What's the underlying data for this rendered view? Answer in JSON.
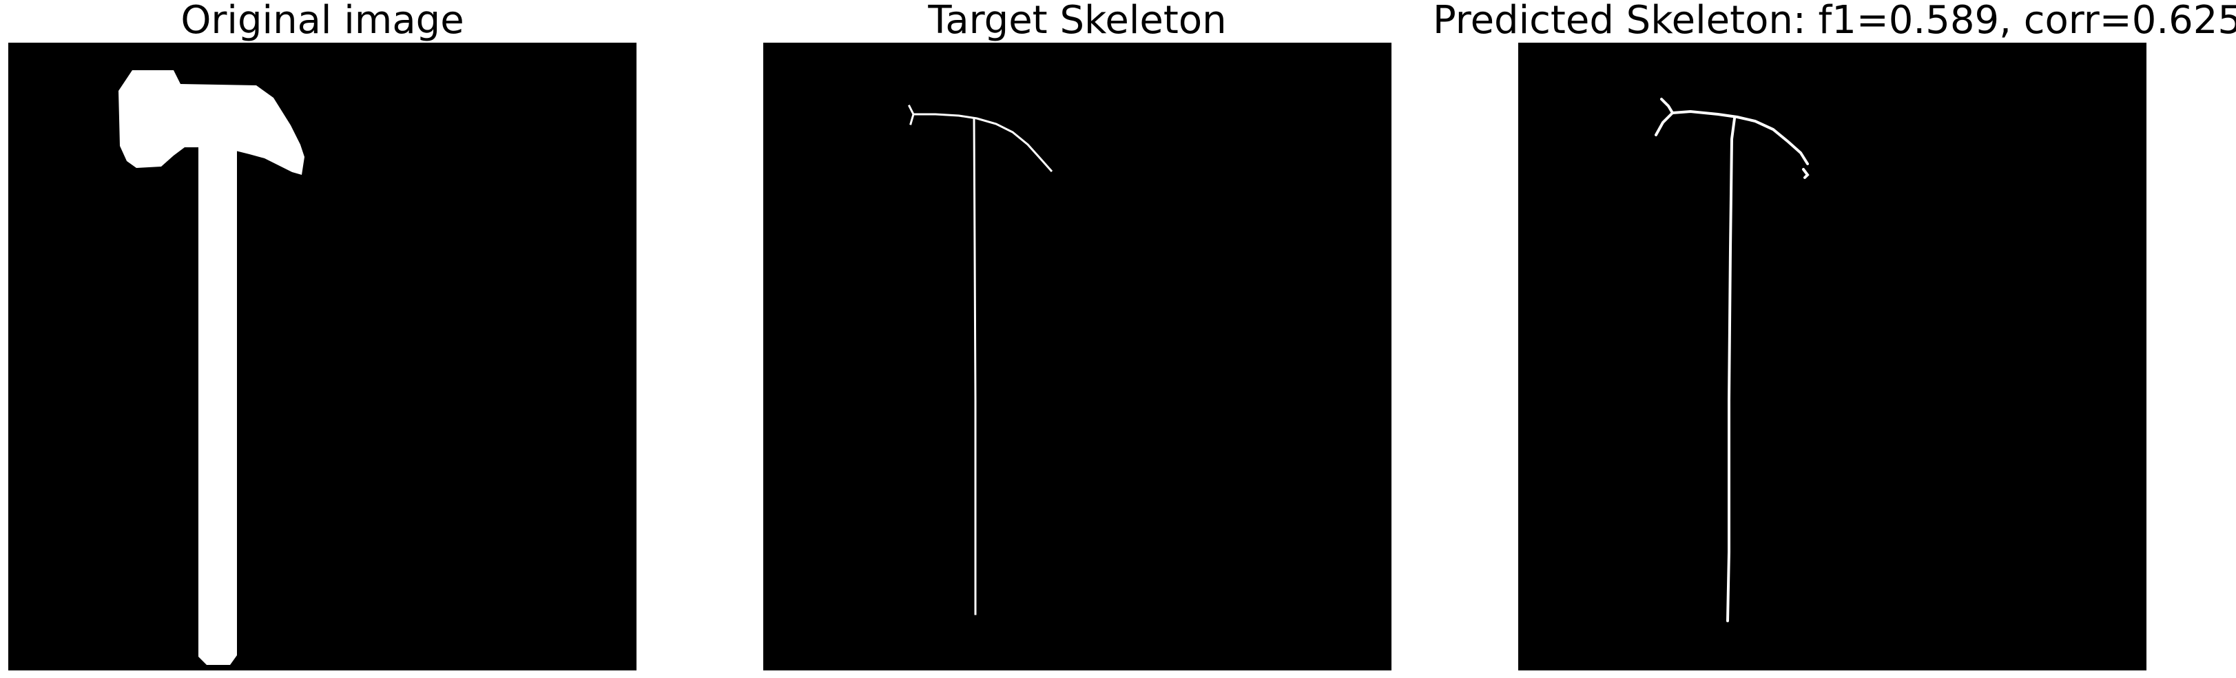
{
  "panels": [
    {
      "title": "Original image"
    },
    {
      "title": "Target Skeleton"
    },
    {
      "title": "Predicted Skeleton: f1=0.589, corr=0.625"
    }
  ],
  "colors": {
    "background": "#000000",
    "foreground": "#ffffff",
    "page": "#ffffff"
  }
}
